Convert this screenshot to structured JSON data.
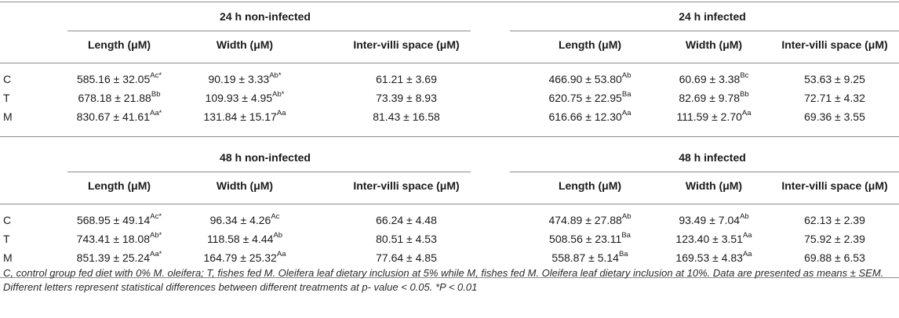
{
  "blocks": [
    {
      "group_left": "24 h non-infected",
      "group_right": "24 h infected",
      "headers": [
        "Length (μM)",
        "Width (μM)",
        "Inter-villi space (μM)",
        "Length (μM)",
        "Width (μM)",
        "Inter-villi space (μM)"
      ],
      "rows": [
        {
          "label": "C",
          "cells": [
            {
              "v": "585.16 ± 32.05",
              "s": "Ac*"
            },
            {
              "v": "90.19 ± 3.33",
              "s": "Ab*"
            },
            {
              "v": "61.21 ± 3.69",
              "s": ""
            },
            {
              "v": "466.90 ± 53.80",
              "s": "Ab"
            },
            {
              "v": "60.69 ± 3.38",
              "s": "Bc"
            },
            {
              "v": "53.63 ± 9.25",
              "s": ""
            }
          ]
        },
        {
          "label": "T",
          "cells": [
            {
              "v": "678.18 ± 21.88",
              "s": "Bb"
            },
            {
              "v": "109.93 ± 4.95",
              "s": "Ab*"
            },
            {
              "v": "73.39 ± 8.93",
              "s": ""
            },
            {
              "v": "620.75 ± 22.95",
              "s": "Ba"
            },
            {
              "v": "82.69 ± 9.78",
              "s": "Bb"
            },
            {
              "v": "72.71 ± 4.32",
              "s": ""
            }
          ]
        },
        {
          "label": "M",
          "cells": [
            {
              "v": "830.67 ± 41.61",
              "s": "Aa*"
            },
            {
              "v": "131.84 ± 15.17",
              "s": "Aa"
            },
            {
              "v": "81.43 ± 16.58",
              "s": ""
            },
            {
              "v": "616.66 ± 12.30",
              "s": "Aa"
            },
            {
              "v": "111.59 ± 2.70",
              "s": "Aa"
            },
            {
              "v": "69.36 ± 3.55",
              "s": ""
            }
          ]
        }
      ]
    },
    {
      "group_left": "48 h non-infected",
      "group_right": "48 h infected",
      "headers": [
        "Length (μM)",
        "Width (μM)",
        "Inter-villi space (μM)",
        "Length (μM)",
        "Width (μM)",
        "Inter-villi space (μM)"
      ],
      "rows": [
        {
          "label": "C",
          "cells": [
            {
              "v": "568.95 ± 49.14",
              "s": "Ac*"
            },
            {
              "v": "96.34 ± 4.26",
              "s": "Ac"
            },
            {
              "v": "66.24 ± 4.48",
              "s": ""
            },
            {
              "v": "474.89 ± 27.88",
              "s": "Ab"
            },
            {
              "v": "93.49 ± 7.04",
              "s": "Ab"
            },
            {
              "v": "62.13 ± 2.39",
              "s": ""
            }
          ]
        },
        {
          "label": "T",
          "cells": [
            {
              "v": "743.41 ± 18.08",
              "s": "Ab*"
            },
            {
              "v": "118.58 ± 4.44",
              "s": "Ab"
            },
            {
              "v": "80.51 ± 4.53",
              "s": ""
            },
            {
              "v": "508.56 ± 23.11",
              "s": "Ba"
            },
            {
              "v": "123.40 ± 3.51",
              "s": "Aa"
            },
            {
              "v": "75.92 ± 2.39",
              "s": ""
            }
          ]
        },
        {
          "label": "M",
          "cells": [
            {
              "v": "851.39 ± 25.24",
              "s": "Aa*"
            },
            {
              "v": "164.79 ± 25.32",
              "s": "Aa"
            },
            {
              "v": "77.64 ± 4.85",
              "s": ""
            },
            {
              "v": "558.87 ± 5.14",
              "s": "Ba"
            },
            {
              "v": "169.53 ± 4.83",
              "s": "Aa"
            },
            {
              "v": "69.88 ± 6.53",
              "s": ""
            }
          ]
        }
      ]
    }
  ],
  "footnote": "C, control group fed diet with 0% M. oleifera; T, fishes fed M. Oleifera leaf dietary inclusion at 5% while M, fishes fed M. Oleifera leaf dietary inclusion at 10%. Data are presented as means ± SEM. Different letters represent statistical differences between different treatments at p- value < 0.05. *P < 0.01"
}
